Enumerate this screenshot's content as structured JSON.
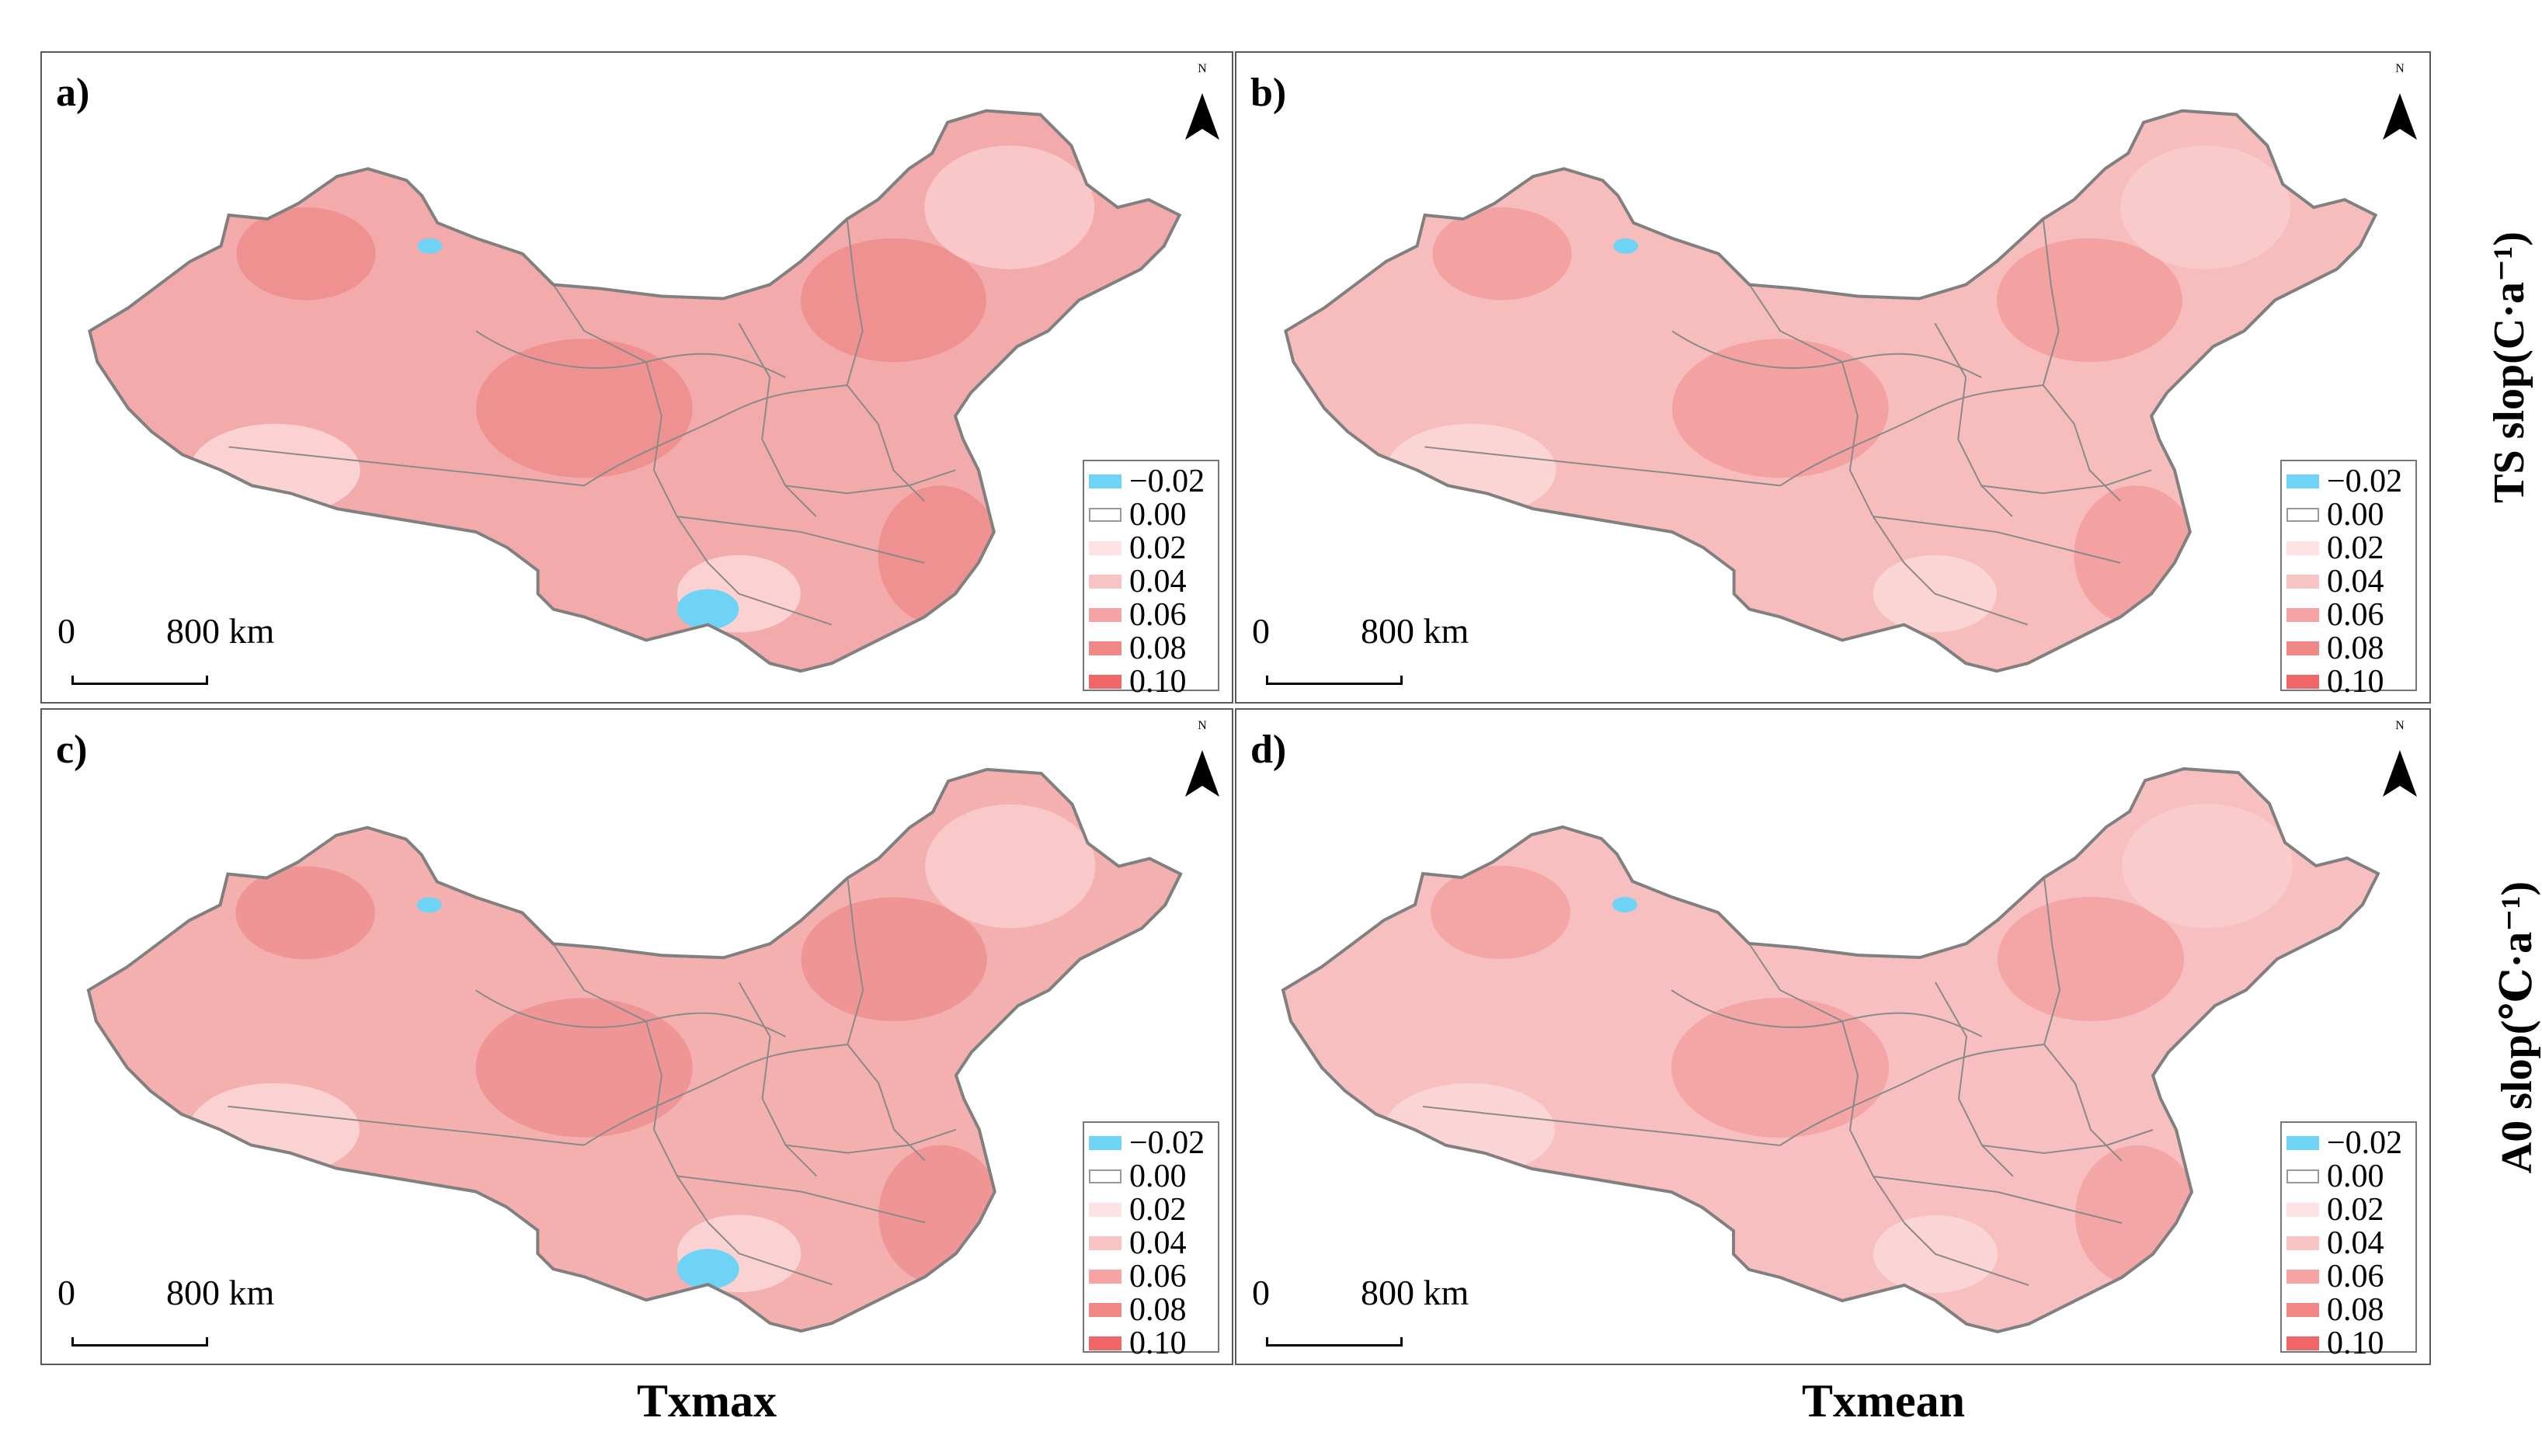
{
  "figure": {
    "row_labels": [
      "TS slop(C·a⁻¹)",
      "A0 slop(℃·a⁻¹)"
    ],
    "column_labels": [
      "Txmax",
      "Txmean"
    ]
  },
  "legend": {
    "title": "",
    "items": [
      {
        "label": "−0.02",
        "color": "#6fd3f5"
      },
      {
        "label": "0.00",
        "color": "#ffffff"
      },
      {
        "label": "0.02",
        "color": "#fde3e3"
      },
      {
        "label": "0.04",
        "color": "#f9c4c4"
      },
      {
        "label": "0.06",
        "color": "#f5a3a3"
      },
      {
        "label": "0.08",
        "color": "#f18787"
      },
      {
        "label": "0.10",
        "color": "#f06565"
      }
    ]
  },
  "scalebar": {
    "zero": "0",
    "distance": "800 km"
  },
  "north_arrow": {
    "letter": "N",
    "icon": "north-arrow-icon"
  },
  "panels": [
    {
      "id": "a",
      "label": "a)",
      "fill": "#f3aaaa",
      "hotspot": "#ef8d8d"
    },
    {
      "id": "b",
      "label": "b)",
      "fill": "#f7bcbc",
      "hotspot": "#f29c9c"
    },
    {
      "id": "c",
      "label": "c)",
      "fill": "#f4afaf",
      "hotspot": "#ef9090"
    },
    {
      "id": "d",
      "label": "d)",
      "fill": "#f7bfbf",
      "hotspot": "#f3a0a0"
    }
  ]
}
